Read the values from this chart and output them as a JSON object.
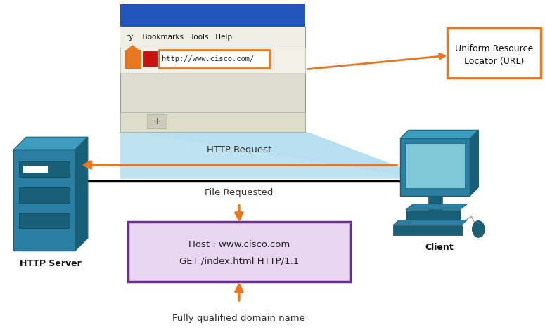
{
  "bg_color": "#ffffff",
  "server_label": "HTTP Server",
  "client_label": "Client",
  "http_request_label": "HTTP Request",
  "file_requested_label": "File Requested",
  "url_box_text": "Uniform Resource\nLocator (URL)",
  "url_bar_text": "http://www.cisco.com/",
  "browser_menu": "ry    Bookmarks   Tools   Help",
  "request_box_line1": "Host : www.cisco.com",
  "request_box_line2": "GET /index.html HTTP/1.1",
  "bottom_label": "Fully qualified domain name",
  "orange": "#E87722",
  "light_blue": "#B8DFF0",
  "purple_border": "#6B2F8A",
  "purple_fill": "#E8D5F0",
  "srv_color": "#2B7FA3",
  "srv_top": "#3D9DBF",
  "srv_dark": "#1a5f78",
  "srv_slot": "#1a5f78",
  "mon_color": "#2B7FA3",
  "mon_screen": "#7EC8D8",
  "mon_dark": "#1a5f78"
}
